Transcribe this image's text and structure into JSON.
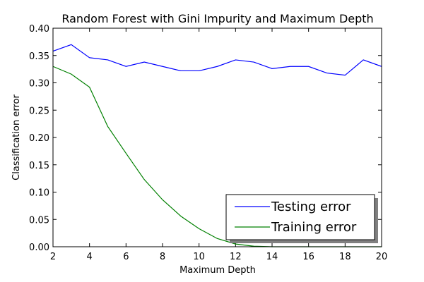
{
  "chart_data": {
    "type": "line",
    "title": "Random Forest with Gini Impurity and Maximum Depth",
    "xlabel": "Maximum Depth",
    "ylabel": "Classification error",
    "xlim": [
      2,
      20
    ],
    "ylim": [
      0.0,
      0.4
    ],
    "xticks": [
      2,
      4,
      6,
      8,
      10,
      12,
      14,
      16,
      18,
      20
    ],
    "yticks": [
      0.0,
      0.05,
      0.1,
      0.15,
      0.2,
      0.25,
      0.3,
      0.35,
      0.4
    ],
    "xtick_labels": [
      "2",
      "4",
      "6",
      "8",
      "10",
      "12",
      "14",
      "16",
      "18",
      "20"
    ],
    "ytick_labels": [
      "0.00",
      "0.05",
      "0.10",
      "0.15",
      "0.20",
      "0.25",
      "0.30",
      "0.35",
      "0.40"
    ],
    "grid": false,
    "legend_position": "lower-right",
    "x": [
      2,
      3,
      4,
      5,
      6,
      7,
      8,
      9,
      10,
      11,
      12,
      13,
      14,
      15,
      16,
      17,
      18,
      19,
      20
    ],
    "series": [
      {
        "name": "Testing error",
        "color": "#0000ff",
        "values": [
          0.358,
          0.37,
          0.346,
          0.342,
          0.33,
          0.338,
          0.33,
          0.322,
          0.322,
          0.33,
          0.342,
          0.338,
          0.326,
          0.33,
          0.33,
          0.318,
          0.314,
          0.342,
          0.33
        ]
      },
      {
        "name": "Training error",
        "color": "#008000",
        "values": [
          0.33,
          0.316,
          0.292,
          0.22,
          0.171,
          0.123,
          0.086,
          0.056,
          0.033,
          0.015,
          0.005,
          0.001,
          0.0,
          0.0,
          0.0,
          0.0,
          0.0,
          0.0,
          0.0
        ]
      }
    ]
  }
}
